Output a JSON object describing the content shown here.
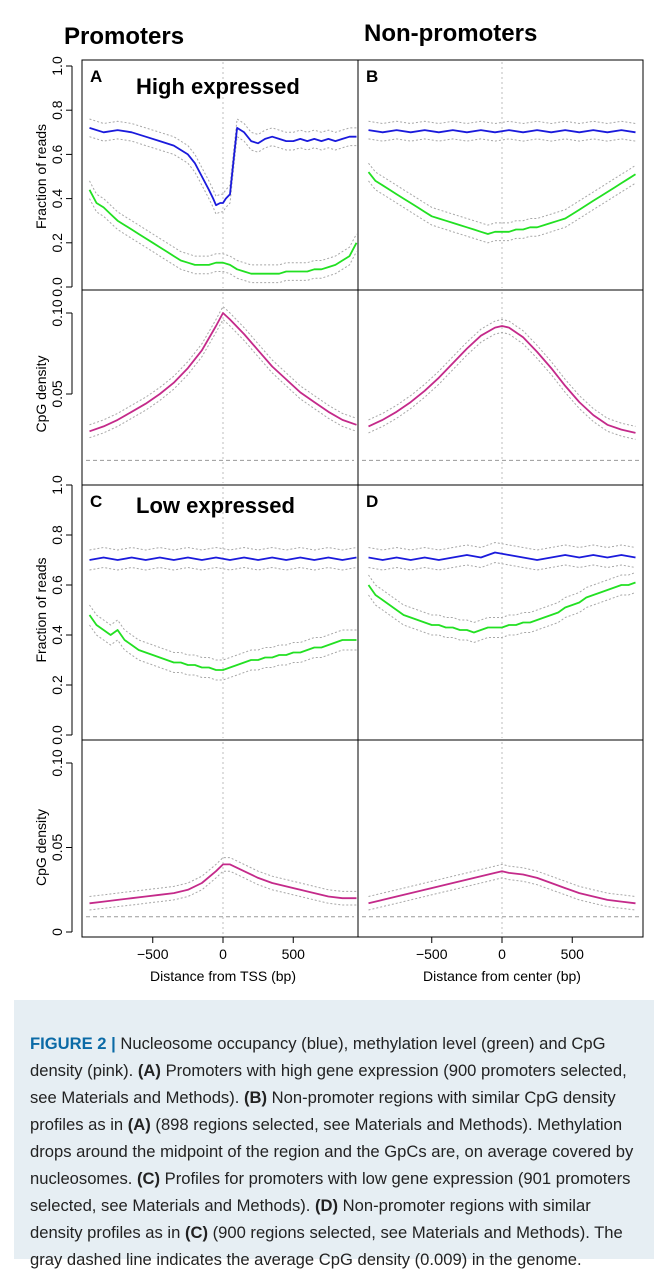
{
  "column_titles": [
    "Promoters",
    "Non-promoters"
  ],
  "chart_data": [
    {
      "type": "line",
      "panel": "A",
      "title": "High expressed",
      "column": "Promoters",
      "ylabel": "Fraction of reads",
      "ylim": [
        0,
        1
      ],
      "yticks": [
        0,
        0.2,
        0.4,
        0.6,
        0.8,
        1
      ],
      "xlim": [
        -950,
        950
      ],
      "series": [
        {
          "color": "#1a1adc",
          "x": [
            -950,
            -850,
            -750,
            -650,
            -550,
            -450,
            -350,
            -250,
            -200,
            -150,
            -100,
            -70,
            -50,
            -20,
            0,
            20,
            50,
            80,
            100,
            150,
            200,
            250,
            300,
            350,
            400,
            450,
            500,
            550,
            600,
            650,
            700,
            750,
            800,
            850,
            900,
            950
          ],
          "y": [
            0.72,
            0.7,
            0.71,
            0.7,
            0.68,
            0.66,
            0.64,
            0.6,
            0.56,
            0.5,
            0.44,
            0.4,
            0.37,
            0.38,
            0.38,
            0.4,
            0.42,
            0.6,
            0.72,
            0.7,
            0.66,
            0.65,
            0.67,
            0.68,
            0.67,
            0.66,
            0.66,
            0.67,
            0.66,
            0.67,
            0.66,
            0.67,
            0.66,
            0.67,
            0.68,
            0.68
          ]
        },
        {
          "color": "#22e022",
          "x": [
            -950,
            -900,
            -850,
            -800,
            -750,
            -700,
            -650,
            -600,
            -550,
            -500,
            -450,
            -400,
            -350,
            -300,
            -250,
            -200,
            -150,
            -100,
            -50,
            0,
            50,
            100,
            150,
            200,
            250,
            300,
            350,
            400,
            450,
            500,
            550,
            600,
            650,
            700,
            750,
            800,
            850,
            900,
            950
          ],
          "y": [
            0.44,
            0.38,
            0.36,
            0.33,
            0.3,
            0.28,
            0.26,
            0.24,
            0.22,
            0.2,
            0.18,
            0.16,
            0.14,
            0.12,
            0.11,
            0.1,
            0.1,
            0.1,
            0.11,
            0.11,
            0.1,
            0.08,
            0.07,
            0.06,
            0.06,
            0.06,
            0.06,
            0.06,
            0.07,
            0.07,
            0.07,
            0.07,
            0.08,
            0.08,
            0.09,
            0.1,
            0.12,
            0.14,
            0.2
          ]
        }
      ]
    },
    {
      "type": "line",
      "panel": "B",
      "title": "",
      "column": "Non-promoters",
      "ylabel": "",
      "ylim": [
        0,
        1
      ],
      "xlim": [
        -950,
        950
      ],
      "series": [
        {
          "color": "#1a1adc",
          "x": [
            -950,
            -850,
            -750,
            -650,
            -550,
            -450,
            -350,
            -250,
            -150,
            -50,
            50,
            150,
            250,
            350,
            450,
            550,
            650,
            750,
            850,
            950
          ],
          "y": [
            0.71,
            0.7,
            0.71,
            0.7,
            0.71,
            0.7,
            0.71,
            0.7,
            0.71,
            0.7,
            0.71,
            0.7,
            0.71,
            0.7,
            0.71,
            0.7,
            0.71,
            0.7,
            0.71,
            0.7
          ]
        },
        {
          "color": "#22e022",
          "x": [
            -950,
            -900,
            -850,
            -800,
            -750,
            -700,
            -650,
            -600,
            -550,
            -500,
            -450,
            -400,
            -350,
            -300,
            -250,
            -200,
            -150,
            -100,
            -50,
            0,
            50,
            100,
            150,
            200,
            250,
            300,
            350,
            400,
            450,
            500,
            550,
            600,
            650,
            700,
            750,
            800,
            850,
            900,
            950
          ],
          "y": [
            0.52,
            0.48,
            0.46,
            0.44,
            0.42,
            0.4,
            0.38,
            0.36,
            0.34,
            0.32,
            0.31,
            0.3,
            0.29,
            0.28,
            0.27,
            0.26,
            0.25,
            0.24,
            0.25,
            0.25,
            0.25,
            0.26,
            0.26,
            0.27,
            0.27,
            0.28,
            0.29,
            0.3,
            0.31,
            0.33,
            0.35,
            0.37,
            0.39,
            0.41,
            0.43,
            0.45,
            0.47,
            0.49,
            0.51
          ]
        }
      ]
    },
    {
      "type": "line",
      "panel": "A-CpG",
      "title": "",
      "column": "Promoters",
      "ylabel": "CpG density",
      "ylim": [
        0,
        0.1
      ],
      "yticks": [
        0.05,
        0.1
      ],
      "ytick_labels": [
        "0.05",
        "0.10"
      ],
      "xlim": [
        -950,
        950
      ],
      "reference_line": 0.009,
      "series": [
        {
          "color": "#c42a8a",
          "x": [
            -950,
            -850,
            -750,
            -650,
            -550,
            -450,
            -350,
            -250,
            -150,
            -50,
            0,
            50,
            150,
            250,
            350,
            450,
            550,
            650,
            750,
            850,
            950
          ],
          "y": [
            0.027,
            0.03,
            0.034,
            0.039,
            0.044,
            0.05,
            0.057,
            0.066,
            0.077,
            0.092,
            0.1,
            0.096,
            0.087,
            0.077,
            0.067,
            0.059,
            0.051,
            0.045,
            0.039,
            0.034,
            0.031
          ]
        }
      ]
    },
    {
      "type": "line",
      "panel": "B-CpG",
      "title": "",
      "column": "Non-promoters",
      "ylabel": "",
      "ylim": [
        0,
        0.1
      ],
      "xlim": [
        -950,
        950
      ],
      "reference_line": 0.009,
      "series": [
        {
          "color": "#c42a8a",
          "x": [
            -950,
            -850,
            -750,
            -650,
            -550,
            -450,
            -350,
            -250,
            -150,
            -50,
            0,
            50,
            150,
            250,
            350,
            450,
            550,
            650,
            750,
            850,
            950
          ],
          "y": [
            0.03,
            0.034,
            0.039,
            0.045,
            0.052,
            0.06,
            0.069,
            0.078,
            0.086,
            0.091,
            0.092,
            0.091,
            0.085,
            0.076,
            0.066,
            0.055,
            0.045,
            0.037,
            0.031,
            0.028,
            0.026
          ]
        }
      ]
    },
    {
      "type": "line",
      "panel": "C",
      "title": "Low expressed",
      "column": "Promoters",
      "ylabel": "Fraction of reads",
      "ylim": [
        0,
        1
      ],
      "yticks": [
        0,
        0.2,
        0.4,
        0.6,
        0.8,
        1
      ],
      "xlim": [
        -950,
        950
      ],
      "series": [
        {
          "color": "#1a1adc",
          "x": [
            -950,
            -850,
            -750,
            -650,
            -550,
            -450,
            -350,
            -250,
            -150,
            -50,
            50,
            150,
            250,
            350,
            450,
            550,
            650,
            750,
            850,
            950
          ],
          "y": [
            0.7,
            0.71,
            0.7,
            0.71,
            0.7,
            0.71,
            0.7,
            0.71,
            0.7,
            0.71,
            0.7,
            0.71,
            0.7,
            0.71,
            0.7,
            0.71,
            0.7,
            0.71,
            0.7,
            0.71
          ]
        },
        {
          "color": "#22e022",
          "x": [
            -950,
            -900,
            -850,
            -800,
            -750,
            -700,
            -650,
            -600,
            -550,
            -500,
            -450,
            -400,
            -350,
            -300,
            -250,
            -200,
            -150,
            -100,
            -50,
            0,
            50,
            100,
            150,
            200,
            250,
            300,
            350,
            400,
            450,
            500,
            550,
            600,
            650,
            700,
            750,
            800,
            850,
            900,
            950
          ],
          "y": [
            0.48,
            0.44,
            0.42,
            0.4,
            0.42,
            0.38,
            0.36,
            0.34,
            0.33,
            0.32,
            0.31,
            0.3,
            0.29,
            0.29,
            0.28,
            0.28,
            0.27,
            0.27,
            0.26,
            0.26,
            0.27,
            0.28,
            0.29,
            0.3,
            0.3,
            0.31,
            0.31,
            0.32,
            0.32,
            0.33,
            0.33,
            0.34,
            0.35,
            0.35,
            0.36,
            0.37,
            0.38,
            0.38,
            0.38
          ]
        }
      ]
    },
    {
      "type": "line",
      "panel": "D",
      "title": "",
      "column": "Non-promoters",
      "ylabel": "",
      "ylim": [
        0,
        1
      ],
      "xlim": [
        -950,
        950
      ],
      "series": [
        {
          "color": "#1a1adc",
          "x": [
            -950,
            -850,
            -750,
            -650,
            -550,
            -450,
            -350,
            -250,
            -150,
            -50,
            50,
            150,
            250,
            350,
            450,
            550,
            650,
            750,
            850,
            950
          ],
          "y": [
            0.71,
            0.7,
            0.71,
            0.7,
            0.71,
            0.7,
            0.71,
            0.72,
            0.71,
            0.73,
            0.72,
            0.71,
            0.7,
            0.71,
            0.72,
            0.71,
            0.72,
            0.71,
            0.72,
            0.71
          ]
        },
        {
          "color": "#22e022",
          "x": [
            -950,
            -900,
            -850,
            -800,
            -750,
            -700,
            -650,
            -600,
            -550,
            -500,
            -450,
            -400,
            -350,
            -300,
            -250,
            -200,
            -150,
            -100,
            -50,
            0,
            50,
            100,
            150,
            200,
            250,
            300,
            350,
            400,
            450,
            500,
            550,
            600,
            650,
            700,
            750,
            800,
            850,
            900,
            950
          ],
          "y": [
            0.6,
            0.56,
            0.54,
            0.52,
            0.5,
            0.48,
            0.47,
            0.46,
            0.45,
            0.44,
            0.44,
            0.43,
            0.43,
            0.42,
            0.42,
            0.41,
            0.42,
            0.43,
            0.43,
            0.43,
            0.44,
            0.44,
            0.45,
            0.45,
            0.46,
            0.47,
            0.48,
            0.49,
            0.51,
            0.52,
            0.53,
            0.55,
            0.56,
            0.57,
            0.58,
            0.59,
            0.6,
            0.6,
            0.61
          ]
        }
      ]
    },
    {
      "type": "line",
      "panel": "C-CpG",
      "title": "",
      "column": "Promoters",
      "ylabel": "CpG density",
      "xlabel": "Distance from TSS (bp)",
      "ylim": [
        0,
        0.1
      ],
      "yticks": [
        0,
        0.05,
        0.1
      ],
      "ytick_labels": [
        "0",
        "0.05",
        "0.10"
      ],
      "xlim": [
        -950,
        950
      ],
      "xticks": [
        -500,
        0,
        500
      ],
      "xtick_labels": [
        "−500",
        "0",
        "500"
      ],
      "reference_line": 0.009,
      "series": [
        {
          "color": "#c42a8a",
          "x": [
            -950,
            -850,
            -750,
            -650,
            -550,
            -450,
            -350,
            -250,
            -150,
            -50,
            0,
            50,
            150,
            250,
            350,
            450,
            550,
            650,
            750,
            850,
            950
          ],
          "y": [
            0.017,
            0.018,
            0.019,
            0.02,
            0.021,
            0.022,
            0.023,
            0.025,
            0.029,
            0.036,
            0.04,
            0.04,
            0.036,
            0.032,
            0.029,
            0.027,
            0.025,
            0.023,
            0.021,
            0.02,
            0.02
          ]
        }
      ]
    },
    {
      "type": "line",
      "panel": "D-CpG",
      "title": "",
      "column": "Non-promoters",
      "ylabel": "",
      "xlabel": "Distance from center (bp)",
      "ylim": [
        0,
        0.1
      ],
      "xlim": [
        -950,
        950
      ],
      "xticks": [
        -500,
        0,
        500
      ],
      "xtick_labels": [
        "−500",
        "0",
        "500"
      ],
      "reference_line": 0.009,
      "series": [
        {
          "color": "#c42a8a",
          "x": [
            -950,
            -850,
            -750,
            -650,
            -550,
            -450,
            -350,
            -250,
            -150,
            -50,
            0,
            50,
            150,
            250,
            350,
            450,
            550,
            650,
            750,
            850,
            950
          ],
          "y": [
            0.017,
            0.019,
            0.021,
            0.023,
            0.025,
            0.027,
            0.029,
            0.031,
            0.033,
            0.035,
            0.036,
            0.035,
            0.034,
            0.032,
            0.029,
            0.026,
            0.023,
            0.021,
            0.019,
            0.018,
            0.017
          ]
        }
      ]
    }
  ],
  "caption": {
    "figure_label": "FIGURE 2 |",
    "segments": [
      {
        "t": " Nucleosome occupancy (blue), methylation level (green) and CpG density (pink). "
      },
      {
        "t": "(A)",
        "b": true
      },
      {
        "t": " Promoters with high gene expression (900 promoters selected, see Materials and Methods).  "
      },
      {
        "t": "(B)",
        "b": true
      },
      {
        "t": " Non-promoter regions with similar CpG density profiles as in "
      },
      {
        "t": "(A)",
        "b": true
      },
      {
        "t": " (898 regions selected, see Materials and Methods). Methylation drops around the midpoint of the region and the GpCs are, on average covered by nucleosomes. "
      },
      {
        "t": "(C)",
        "b": true
      },
      {
        "t": " Profiles for promoters with low gene expression (901 promoters selected, see Materials and Methods). "
      },
      {
        "t": "(D)",
        "b": true
      },
      {
        "t": " Non-promoter regions with similar density profiles as in "
      },
      {
        "t": "(C)",
        "b": true
      },
      {
        "t": " (900 regions selected, see Materials and Methods). The gray dashed line indicates the average CpG density (0.009) in the genome."
      }
    ]
  }
}
